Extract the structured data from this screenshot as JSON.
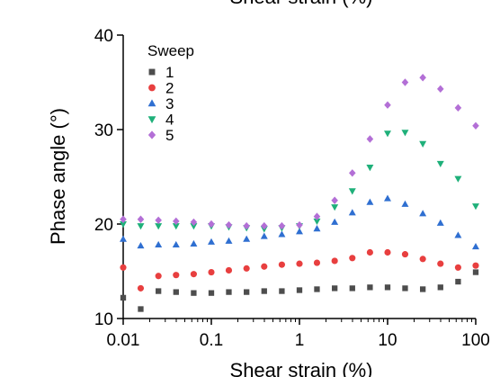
{
  "chart_data": {
    "type": "scatter",
    "top_axis_label": "Shear strain (%)",
    "xlabel": "Shear strain (%)",
    "ylabel": "Phase angle (°)",
    "x_scale": "log",
    "xlim": [
      0.01,
      100
    ],
    "ylim": [
      10,
      40
    ],
    "x_ticks": [
      0.01,
      0.1,
      1,
      10,
      100
    ],
    "x_tick_labels": [
      "0.01",
      "0.1",
      "1",
      "10",
      "100"
    ],
    "y_ticks": [
      10,
      20,
      30,
      40
    ],
    "y_tick_labels": [
      "10",
      "20",
      "30",
      "40"
    ],
    "grid": false,
    "legend": {
      "title": "Sweep",
      "position": "top-left"
    },
    "x": [
      0.01,
      0.0126,
      0.0158,
      0.02,
      0.0251,
      0.0316,
      0.0398,
      0.0501,
      0.0631,
      0.0794,
      0.1,
      0.126,
      0.158,
      0.2,
      0.251,
      0.316,
      0.398,
      0.501,
      0.631,
      0.794,
      1,
      1.26,
      1.58,
      2,
      2.51,
      3.16,
      3.98,
      5.01,
      6.31,
      7.94,
      10,
      12.6,
      15.8,
      20,
      25.1,
      31.6,
      39.8,
      50.1,
      63.1,
      79.4,
      100
    ],
    "series": [
      {
        "name": "1",
        "marker": "square",
        "color": "#4d4d4d",
        "points": [
          [
            0.01,
            12.2
          ],
          [
            0.0158,
            11.0
          ],
          [
            0.0251,
            12.9
          ],
          [
            0.0398,
            12.8
          ],
          [
            0.0631,
            12.7
          ],
          [
            0.1,
            12.7
          ],
          [
            0.158,
            12.8
          ],
          [
            0.251,
            12.8
          ],
          [
            0.398,
            12.9
          ],
          [
            0.631,
            12.9
          ],
          [
            1,
            13.0
          ],
          [
            1.58,
            13.1
          ],
          [
            2.51,
            13.2
          ],
          [
            3.98,
            13.2
          ],
          [
            6.31,
            13.3
          ],
          [
            10,
            13.3
          ],
          [
            15.8,
            13.2
          ],
          [
            25.1,
            13.1
          ],
          [
            39.8,
            13.3
          ],
          [
            63.1,
            13.9
          ],
          [
            100,
            14.9
          ]
        ]
      },
      {
        "name": "2",
        "marker": "circle",
        "color": "#e83f3f",
        "points": [
          [
            0.01,
            15.4
          ],
          [
            0.0158,
            13.2
          ],
          [
            0.0251,
            14.5
          ],
          [
            0.0398,
            14.6
          ],
          [
            0.0631,
            14.7
          ],
          [
            0.1,
            14.9
          ],
          [
            0.158,
            15.1
          ],
          [
            0.251,
            15.3
          ],
          [
            0.398,
            15.5
          ],
          [
            0.631,
            15.7
          ],
          [
            1,
            15.8
          ],
          [
            1.58,
            15.9
          ],
          [
            2.51,
            16.1
          ],
          [
            3.98,
            16.4
          ],
          [
            6.31,
            17.0
          ],
          [
            10,
            17.0
          ],
          [
            15.8,
            16.8
          ],
          [
            25.1,
            16.3
          ],
          [
            39.8,
            15.8
          ],
          [
            63.1,
            15.4
          ],
          [
            100,
            15.6
          ]
        ]
      },
      {
        "name": "3",
        "marker": "triangle-up",
        "color": "#2f6fd1",
        "points": [
          [
            0.01,
            18.4
          ],
          [
            0.0158,
            17.7
          ],
          [
            0.0251,
            17.8
          ],
          [
            0.0398,
            17.8
          ],
          [
            0.0631,
            17.9
          ],
          [
            0.1,
            18.1
          ],
          [
            0.158,
            18.2
          ],
          [
            0.251,
            18.4
          ],
          [
            0.398,
            18.7
          ],
          [
            0.631,
            18.9
          ],
          [
            1,
            19.2
          ],
          [
            1.58,
            19.5
          ],
          [
            2.51,
            20.2
          ],
          [
            3.98,
            21.2
          ],
          [
            6.31,
            22.3
          ],
          [
            10,
            22.7
          ],
          [
            15.8,
            22.1
          ],
          [
            25.1,
            21.1
          ],
          [
            39.8,
            20.1
          ],
          [
            63.1,
            18.8
          ],
          [
            100,
            17.6
          ]
        ]
      },
      {
        "name": "4",
        "marker": "triangle-down",
        "color": "#1fb07a",
        "points": [
          [
            0.01,
            20.0
          ],
          [
            0.0158,
            19.8
          ],
          [
            0.0251,
            19.8
          ],
          [
            0.0398,
            19.8
          ],
          [
            0.0631,
            19.8
          ],
          [
            0.1,
            19.8
          ],
          [
            0.158,
            19.7
          ],
          [
            0.251,
            19.6
          ],
          [
            0.398,
            19.5
          ],
          [
            0.631,
            19.6
          ],
          [
            1,
            19.8
          ],
          [
            1.58,
            20.3
          ],
          [
            2.51,
            21.8
          ],
          [
            3.98,
            23.5
          ],
          [
            6.31,
            26.0
          ],
          [
            10,
            29.6
          ],
          [
            15.8,
            29.7
          ],
          [
            25.1,
            28.5
          ],
          [
            39.8,
            26.4
          ],
          [
            63.1,
            24.8
          ],
          [
            100,
            21.9
          ]
        ]
      },
      {
        "name": "5",
        "marker": "diamond",
        "color": "#b36fd6",
        "points": [
          [
            0.01,
            20.5
          ],
          [
            0.0158,
            20.5
          ],
          [
            0.0251,
            20.4
          ],
          [
            0.0398,
            20.3
          ],
          [
            0.0631,
            20.2
          ],
          [
            0.1,
            20.0
          ],
          [
            0.158,
            19.9
          ],
          [
            0.251,
            19.8
          ],
          [
            0.398,
            19.8
          ],
          [
            0.631,
            19.8
          ],
          [
            1,
            19.9
          ],
          [
            1.58,
            20.8
          ],
          [
            2.51,
            22.5
          ],
          [
            3.98,
            25.4
          ],
          [
            6.31,
            29.0
          ],
          [
            10,
            32.6
          ],
          [
            15.8,
            35.0
          ],
          [
            25.1,
            35.5
          ],
          [
            39.8,
            34.3
          ],
          [
            63.1,
            32.3
          ],
          [
            100,
            30.4
          ]
        ]
      }
    ]
  }
}
